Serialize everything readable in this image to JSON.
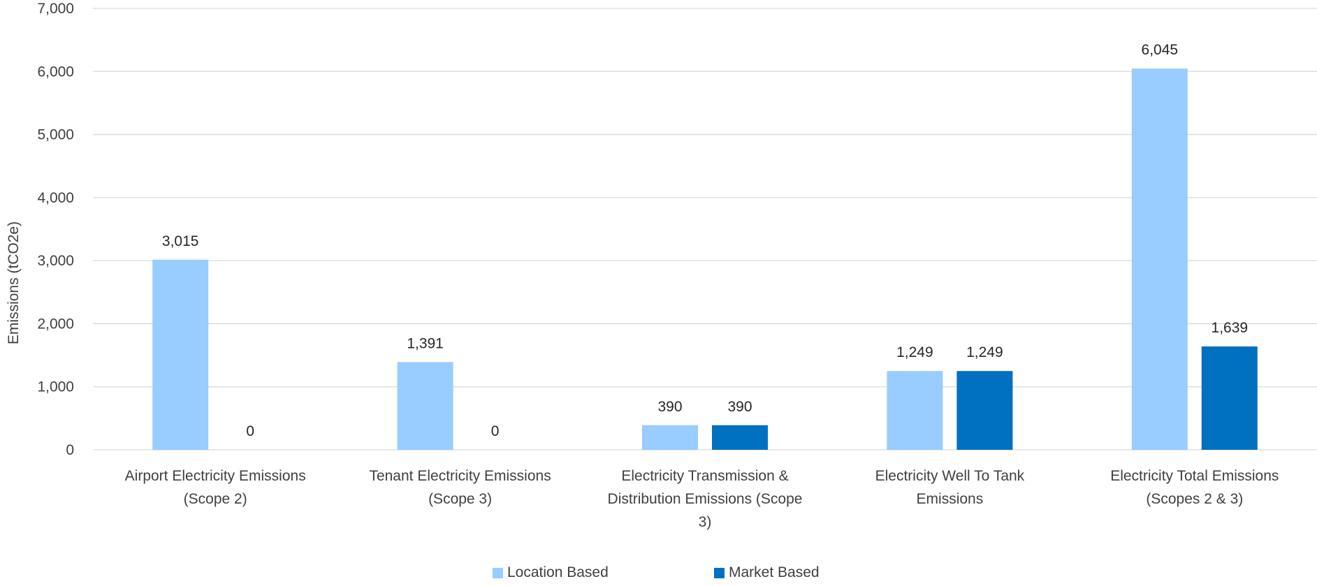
{
  "chart_data": {
    "type": "bar",
    "ylabel": "Emissions (tCO2e)",
    "ylim": [
      0,
      7000
    ],
    "yticks": [
      0,
      1000,
      2000,
      3000,
      4000,
      5000,
      6000,
      7000
    ],
    "ytick_labels": [
      "0",
      "1,000",
      "2,000",
      "3,000",
      "4,000",
      "5,000",
      "6,000",
      "7,000"
    ],
    "grid": true,
    "legend_position": "bottom",
    "categories": [
      [
        "Airport Electricity Emissions",
        "(Scope 2)"
      ],
      [
        "Tenant Electricity Emissions",
        "(Scope 3)"
      ],
      [
        "Electricity Transmission &",
        "Distribution Emissions (Scope",
        "3)"
      ],
      [
        "Electricity Well To Tank",
        "Emissions"
      ],
      [
        "Electricity Total Emissions",
        "(Scopes 2 & 3)"
      ]
    ],
    "series": [
      {
        "name": "Location Based",
        "color": "#99ccff",
        "values": [
          3015,
          1391,
          390,
          1249,
          6045
        ],
        "labels": [
          "3,015",
          "1,391",
          "390",
          "1,249",
          "6,045"
        ]
      },
      {
        "name": "Market Based",
        "color": "#0070c0",
        "values": [
          0,
          0,
          390,
          1249,
          1639
        ],
        "labels": [
          "0",
          "0",
          "390",
          "1,249",
          "1,639"
        ]
      }
    ]
  }
}
